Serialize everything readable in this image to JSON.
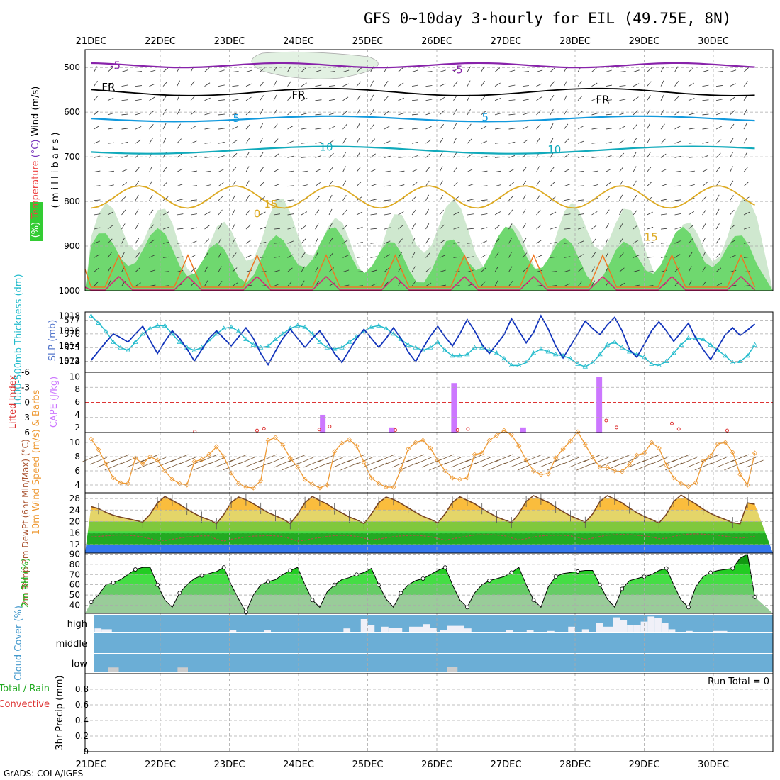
{
  "title": "GFS 0~10day 3-hourly for EIL (49.75E, 8N)",
  "footer": "GrADS: COLA/IGES",
  "colors": {
    "grid": "#aaaaaa",
    "thick_line": "#22bbcc",
    "slp_line": "#1133bb",
    "cape": "#cc77ff",
    "lifted": "#dd3333",
    "wind": "#ee9933",
    "temp": "#774422",
    "rh": "#22bb22",
    "cloud": "#6baed6",
    "rh_fill": "#55cc55"
  },
  "chart_data": [
    {
      "type": "area",
      "name": "upper-air",
      "xlabel": "",
      "dates": [
        "21DEC",
        "22DEC",
        "23DEC",
        "24DEC",
        "25DEC",
        "26DEC",
        "27DEC",
        "28DEC",
        "29DEC",
        "30DEC"
      ],
      "ylabel_parts": [
        "RH (%)",
        "Temperature",
        "(°C)",
        "Wind (m/s)"
      ],
      "yunit": "( m i l l i b a r s )",
      "yticks": [
        "500",
        "600",
        "700",
        "800",
        "900",
        "1000"
      ],
      "ylim": [
        1000,
        460
      ],
      "contour_labels": [
        {
          "text": "-5",
          "color": "#8822aa",
          "day": 0.35,
          "p": 496
        },
        {
          "text": "-5",
          "color": "#8822aa",
          "day": 5.3,
          "p": 505
        },
        {
          "text": "FR",
          "color": "#000000",
          "day": 0.25,
          "p": 544
        },
        {
          "text": "FR",
          "color": "#000000",
          "day": 3.0,
          "p": 562
        },
        {
          "text": "FR",
          "color": "#000000",
          "day": 7.4,
          "p": 572
        },
        {
          "text": "5",
          "color": "#1199dd",
          "day": 2.1,
          "p": 614
        },
        {
          "text": "5",
          "color": "#1199dd",
          "day": 5.7,
          "p": 612
        },
        {
          "text": "10",
          "color": "#11aabb",
          "day": 3.4,
          "p": 678
        },
        {
          "text": "10",
          "color": "#11aabb",
          "day": 6.7,
          "p": 684
        },
        {
          "text": "15",
          "color": "#ddaa22",
          "day": 2.6,
          "p": 806
        },
        {
          "text": "15",
          "color": "#ddaa22",
          "day": 8.1,
          "p": 880
        },
        {
          "text": "0",
          "color": "#ddaa22",
          "day": 2.4,
          "p": 828
        }
      ]
    },
    {
      "type": "line",
      "name": "thickness-slp",
      "ylabel_left": "1000-500mb Thickness (dm)",
      "ylabel_right": "SLP (mb)",
      "left_ticks": [
        "577",
        "576",
        "575",
        "574"
      ],
      "left_lim": [
        573.2,
        577.6
      ],
      "right_ticks": [
        "1018",
        "1016",
        "1014",
        "1012"
      ],
      "right_lim": [
        1010.5,
        1018.5
      ],
      "series": [
        {
          "name": "thickness",
          "values": [
            577.3,
            576.8,
            576.2,
            575.4,
            575.0,
            574.8,
            575.4,
            576.0,
            576.4,
            576.6,
            576.6,
            576.0,
            575.4,
            575.0,
            574.8,
            575.0,
            575.5,
            576.0,
            576.4,
            576.5,
            576.2,
            575.6,
            575.2,
            575.0,
            575.1,
            575.6,
            576.0,
            576.4,
            576.6,
            576.5,
            576.0,
            575.4,
            575.0,
            574.9,
            575.0,
            575.4,
            575.8,
            576.2,
            576.5,
            576.6,
            576.4,
            576.0,
            575.6,
            575.2,
            575.0,
            574.8,
            575.0,
            575.4,
            574.8,
            574.4,
            574.4,
            574.5,
            575.0,
            575.0,
            574.8,
            574.6,
            574.2,
            573.7,
            573.7,
            573.9,
            574.6,
            574.9,
            574.7,
            574.5,
            574.4,
            574.2,
            573.8,
            573.6,
            573.9,
            574.5,
            575.2,
            575.4,
            575.0,
            574.7,
            574.5,
            574.3,
            573.8,
            573.7,
            574.0,
            574.6,
            575.2,
            575.7,
            575.7,
            575.6,
            575.2,
            574.8,
            574.4,
            573.9,
            574.0,
            574.4,
            575.2
          ]
        },
        {
          "name": "slp",
          "values": [
            1012.1,
            1013.3,
            1014.5,
            1015.6,
            1015.1,
            1014.5,
            1015.6,
            1016.6,
            1014.7,
            1013.0,
            1014.6,
            1016.0,
            1015.0,
            1013.6,
            1012.0,
            1013.5,
            1015.0,
            1016.0,
            1015.0,
            1014.0,
            1015.2,
            1016.4,
            1015.0,
            1013.0,
            1011.5,
            1013.3,
            1015.0,
            1016.2,
            1015.0,
            1013.8,
            1015.0,
            1016.0,
            1014.6,
            1013.0,
            1011.8,
            1013.4,
            1015.0,
            1016.2,
            1015.0,
            1013.8,
            1015.0,
            1016.4,
            1015.0,
            1013.2,
            1011.9,
            1013.7,
            1015.3,
            1016.6,
            1015.2,
            1014.0,
            1015.6,
            1017.5,
            1016.0,
            1014.2,
            1013.0,
            1014.2,
            1015.5,
            1017.6,
            1016.0,
            1014.4,
            1015.8,
            1018.0,
            1016.2,
            1014.0,
            1012.4,
            1014.0,
            1015.6,
            1017.3,
            1016.3,
            1015.5,
            1016.8,
            1017.8,
            1016.0,
            1013.5,
            1012.5,
            1014.2,
            1016.0,
            1017.2,
            1016.0,
            1014.6,
            1015.8,
            1017.0,
            1015.0,
            1013.5,
            1012.2,
            1013.8,
            1015.5,
            1016.4,
            1015.4,
            1016.1,
            1016.9
          ]
        }
      ]
    },
    {
      "type": "bar",
      "name": "cape-lifted-index",
      "ylabel_left": "Lifted Index",
      "ylabel_right": "CAPE (J/kg)",
      "left_ticks": [
        "-6",
        "-3",
        "0",
        "3",
        "6"
      ],
      "left_lim": [
        6,
        -6
      ],
      "right_ticks": [
        "10",
        "8",
        "6",
        "4",
        "2"
      ],
      "right_lim": [
        1.2,
        10.7
      ],
      "cape_bars": [
        {
          "day": 3.35,
          "value": 4
        },
        {
          "day": 4.35,
          "value": 2
        },
        {
          "day": 5.25,
          "value": 9
        },
        {
          "day": 6.25,
          "value": 2
        },
        {
          "day": 7.35,
          "value": 10
        }
      ],
      "lifted_points": [
        {
          "day": 1.5,
          "value": 5.8
        },
        {
          "day": 2.4,
          "value": 5.6
        },
        {
          "day": 2.5,
          "value": 5.2
        },
        {
          "day": 3.3,
          "value": 5.4
        },
        {
          "day": 3.45,
          "value": 4.8
        },
        {
          "day": 4.4,
          "value": 5.5
        },
        {
          "day": 5.3,
          "value": 5.5
        },
        {
          "day": 5.45,
          "value": 5.3
        },
        {
          "day": 7.45,
          "value": 3.6
        },
        {
          "day": 7.6,
          "value": 5.0
        },
        {
          "day": 8.4,
          "value": 4.2
        },
        {
          "day": 8.5,
          "value": 5.3
        },
        {
          "day": 9.2,
          "value": 5.6
        }
      ]
    },
    {
      "type": "line",
      "name": "wind-10m",
      "ylabel": "10m Wind Speed (m/s) & Barbs",
      "yticks": [
        "10",
        "8",
        "6",
        "4"
      ],
      "ylim": [
        2.9,
        11.4
      ],
      "values": [
        10.5,
        9.0,
        7.0,
        5.0,
        4.3,
        4.2,
        7.8,
        7.0,
        8.0,
        7.5,
        6.0,
        4.8,
        4.2,
        4.0,
        7.3,
        7.6,
        8.3,
        9.4,
        8.0,
        5.7,
        4.2,
        3.7,
        3.6,
        4.6,
        10.3,
        10.7,
        9.6,
        7.8,
        6.5,
        4.8,
        4.1,
        3.6,
        4.0,
        8.7,
        9.9,
        10.4,
        9.5,
        7.2,
        5.0,
        4.2,
        3.7,
        3.7,
        6.2,
        9.1,
        10.0,
        10.3,
        9.2,
        7.5,
        6.0,
        5.0,
        4.8,
        5.0,
        8.3,
        8.5,
        10.3,
        11.0,
        11.7,
        11.1,
        9.5,
        7.5,
        6.0,
        5.5,
        5.6,
        7.8,
        9.1,
        10.2,
        11.5,
        9.7,
        7.9,
        6.5,
        6.5,
        6.0,
        5.9,
        6.9,
        8.2,
        8.5,
        10.0,
        9.2,
        6.8,
        5.0,
        4.2,
        3.8,
        4.3,
        7.4,
        8.1,
        9.8,
        10.0,
        8.6,
        5.5,
        4.0,
        8.5
      ]
    },
    {
      "type": "area",
      "name": "temp-2m",
      "ylabel": "2m Temp 2m DewPt (6hr Min/Max) (°C)",
      "yticks": [
        "28",
        "24",
        "20",
        "16",
        "12"
      ],
      "ylim": [
        9,
        30
      ],
      "temp_values": [
        25.2,
        24.5,
        23.2,
        22.2,
        21.5,
        21.0,
        20.4,
        19.8,
        22.5,
        26.5,
        28.7,
        27.4,
        26.0,
        24.3,
        22.8,
        21.5,
        20.6,
        19.3,
        22.5,
        26.7,
        28.5,
        27.6,
        26.2,
        24.6,
        23.1,
        22.0,
        20.9,
        19.3,
        22.5,
        26.6,
        28.7,
        27.3,
        26.1,
        24.4,
        23.0,
        21.6,
        20.6,
        19.3,
        22.6,
        26.6,
        28.5,
        27.7,
        26.3,
        24.8,
        23.2,
        21.8,
        20.8,
        19.5,
        22.7,
        26.7,
        28.6,
        27.4,
        26.2,
        24.5,
        23.0,
        21.6,
        20.6,
        19.6,
        22.8,
        27.0,
        29.0,
        27.8,
        26.7,
        25.0,
        23.4,
        22.0,
        20.9,
        19.7,
        22.6,
        27.0,
        29.0,
        27.8,
        26.5,
        24.7,
        23.1,
        21.8,
        20.7,
        19.5,
        22.5,
        27.0,
        29.2,
        27.6,
        26.1,
        24.3,
        22.8,
        21.7,
        20.7,
        19.6,
        19.2,
        26.5,
        26.0
      ],
      "dew_values": [
        14.6,
        14.8,
        15.0,
        15.2,
        15.3,
        15.2,
        15.0,
        14.6,
        14.0,
        13.5,
        13.4,
        13.8,
        14.2,
        14.6,
        14.8,
        15.0,
        15.0,
        13.8,
        13.2,
        13.8,
        14.2,
        14.6,
        14.9,
        15.0,
        15.1,
        15.0,
        14.8,
        14.0,
        13.2,
        13.5,
        14.0,
        14.4,
        14.8,
        15.1,
        15.2,
        15.1,
        14.8,
        14.2,
        13.6,
        13.9,
        14.3,
        14.7,
        15.0,
        15.1,
        15.2,
        15.0,
        14.7,
        14.1,
        13.5,
        14.0,
        14.4,
        14.9,
        15.3,
        15.4,
        15.4,
        15.3,
        15.1,
        14.3,
        13.6,
        14.0,
        14.6,
        15.0,
        15.2,
        15.2,
        15.2,
        15.0,
        14.4,
        13.8,
        14.2,
        14.8,
        15.2,
        15.4,
        15.5,
        15.4,
        15.2,
        15.0,
        14.6,
        14.0,
        14.2,
        14.8,
        15.3,
        15.6,
        15.7,
        15.6,
        15.4,
        15.2,
        14.9,
        14.5,
        14.2,
        14.5,
        14.8
      ]
    },
    {
      "type": "area",
      "name": "rh-2m",
      "ylabel": "2m RH (%)",
      "yticks": [
        "90",
        "80",
        "70",
        "60",
        "50",
        "40"
      ],
      "ylim": [
        32,
        91
      ],
      "values": [
        43,
        50,
        60,
        62,
        65,
        70,
        75,
        77,
        77,
        60,
        45,
        38,
        52,
        60,
        66,
        69,
        71,
        73,
        77,
        60,
        46,
        33,
        50,
        60,
        63,
        65,
        70,
        74,
        77,
        60,
        45,
        38,
        53,
        60,
        65,
        67,
        70,
        72,
        76,
        60,
        46,
        38,
        52,
        60,
        64,
        66,
        70,
        74,
        77,
        60,
        45,
        38,
        52,
        60,
        64,
        66,
        68,
        72,
        77,
        60,
        45,
        38,
        58,
        68,
        71,
        72,
        73,
        74,
        74,
        60,
        46,
        38,
        56,
        64,
        66,
        68,
        70,
        74,
        76,
        60,
        45,
        38,
        58,
        68,
        72,
        74,
        75,
        76,
        86,
        90,
        48
      ]
    },
    {
      "type": "bar",
      "name": "cloud-cover",
      "ylabel": "Cloud Cover (%)",
      "layers": [
        "high",
        "middle",
        "low"
      ],
      "high_blocks": [
        {
          "d0": 0.05,
          "d1": 0.15,
          "h": 0.2
        },
        {
          "d0": 0.15,
          "d1": 0.3,
          "h": 0.15
        },
        {
          "d0": 2.0,
          "d1": 2.1,
          "h": 0.1
        },
        {
          "d0": 2.5,
          "d1": 2.6,
          "h": 0.1
        },
        {
          "d0": 3.65,
          "d1": 3.75,
          "h": 0.2
        },
        {
          "d0": 3.9,
          "d1": 4.0,
          "h": 0.75
        },
        {
          "d0": 4.0,
          "d1": 4.1,
          "h": 0.4
        },
        {
          "d0": 4.2,
          "d1": 4.3,
          "h": 0.3
        },
        {
          "d0": 4.3,
          "d1": 4.5,
          "h": 0.25
        },
        {
          "d0": 4.6,
          "d1": 4.8,
          "h": 0.3
        },
        {
          "d0": 4.8,
          "d1": 4.9,
          "h": 0.45
        },
        {
          "d0": 4.9,
          "d1": 5.0,
          "h": 0.25
        },
        {
          "d0": 5.05,
          "d1": 5.15,
          "h": 0.1
        },
        {
          "d0": 5.15,
          "d1": 5.4,
          "h": 0.35
        },
        {
          "d0": 5.4,
          "d1": 5.5,
          "h": 0.2
        },
        {
          "d0": 6.0,
          "d1": 6.1,
          "h": 0.1
        },
        {
          "d0": 6.3,
          "d1": 6.4,
          "h": 0.1
        },
        {
          "d0": 6.6,
          "d1": 6.7,
          "h": 0.05
        },
        {
          "d0": 6.9,
          "d1": 7.0,
          "h": 0.3
        },
        {
          "d0": 7.1,
          "d1": 7.2,
          "h": 0.15
        },
        {
          "d0": 7.3,
          "d1": 7.4,
          "h": 0.5
        },
        {
          "d0": 7.4,
          "d1": 7.55,
          "h": 0.3
        },
        {
          "d0": 7.55,
          "d1": 7.65,
          "h": 0.85
        },
        {
          "d0": 7.65,
          "d1": 7.75,
          "h": 0.7
        },
        {
          "d0": 7.75,
          "d1": 7.85,
          "h": 0.4
        },
        {
          "d0": 7.85,
          "d1": 7.95,
          "h": 0.4
        },
        {
          "d0": 7.95,
          "d1": 8.05,
          "h": 0.6
        },
        {
          "d0": 8.05,
          "d1": 8.15,
          "h": 0.9
        },
        {
          "d0": 8.15,
          "d1": 8.25,
          "h": 0.8
        },
        {
          "d0": 8.25,
          "d1": 8.35,
          "h": 0.5
        },
        {
          "d0": 8.35,
          "d1": 8.45,
          "h": 0.15
        },
        {
          "d0": 8.6,
          "d1": 8.7,
          "h": 0.05
        },
        {
          "d0": 9.0,
          "d1": 9.2,
          "h": 0.05
        }
      ],
      "low_blocks": [
        {
          "d0": 0.25,
          "d1": 0.4,
          "h": 0.15
        },
        {
          "d0": 1.25,
          "d1": 1.4,
          "h": 0.15
        },
        {
          "d0": 5.15,
          "d1": 5.3,
          "h": 0.2
        }
      ]
    },
    {
      "type": "bar",
      "name": "precip",
      "ylabel_parts": [
        "Total / Rain",
        "Convective",
        "3hr Precip (mm)"
      ],
      "yticks": [
        "0.8",
        "0.6",
        "0.4",
        "0.2",
        "0"
      ],
      "ylim": [
        0,
        1.0
      ],
      "annotation": "Run Total = 0",
      "values": []
    }
  ]
}
